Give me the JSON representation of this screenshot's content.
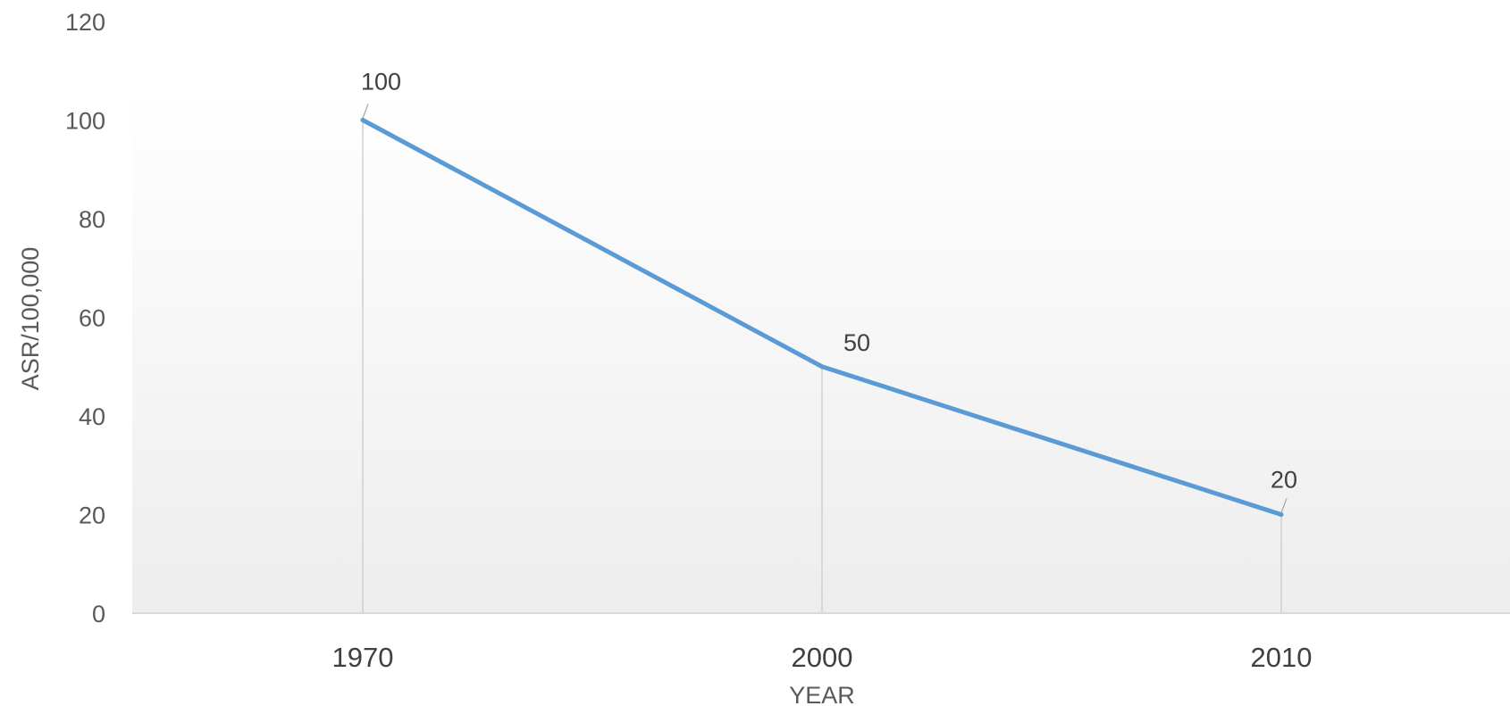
{
  "chart_data": {
    "type": "line",
    "title": "",
    "xlabel": "YEAR",
    "ylabel": "ASR/100,000",
    "categories": [
      "1970",
      "2000",
      "2010"
    ],
    "series": [
      {
        "values": [
          100,
          50,
          20
        ],
        "color": "#5b9bd5"
      }
    ],
    "data_labels": [
      "100",
      "50",
      "20"
    ],
    "ylim": [
      0,
      120
    ],
    "yticks": [
      0,
      20,
      40,
      60,
      80,
      100,
      120
    ],
    "ytick_labels": [
      "0",
      "20",
      "40",
      "60",
      "80",
      "100",
      "120"
    ],
    "grid": false,
    "drop_lines": true,
    "legend": "none",
    "plot_background": "gradient-white-to-light-gray",
    "axis_color": "#d9d9d9",
    "text_color": "#595959"
  }
}
